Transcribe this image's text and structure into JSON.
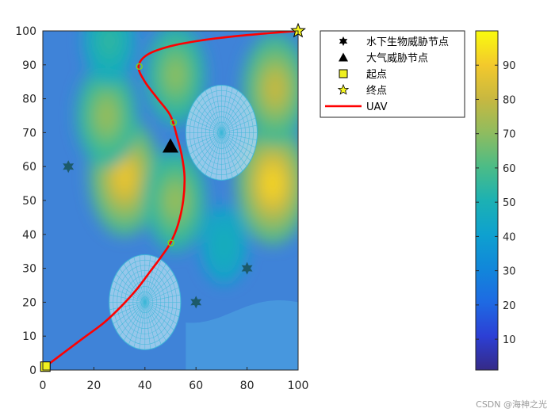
{
  "chart_data": {
    "type": "heatmap",
    "xlim": [
      0,
      100
    ],
    "ylim": [
      0,
      100
    ],
    "x_ticks": [
      0,
      20,
      40,
      60,
      80,
      100
    ],
    "y_ticks": [
      0,
      10,
      20,
      30,
      40,
      50,
      60,
      70,
      80,
      90,
      100
    ],
    "grid": false,
    "terrain_peaks": [
      {
        "x": 32,
        "y": 57,
        "value": 88
      },
      {
        "x": 90,
        "y": 55,
        "value": 92
      },
      {
        "x": 25,
        "y": 75,
        "value": 72
      },
      {
        "x": 91,
        "y": 83,
        "value": 80
      },
      {
        "x": 52,
        "y": 50,
        "value": 72
      },
      {
        "x": 52,
        "y": 87,
        "value": 70
      },
      {
        "x": 26,
        "y": 97,
        "value": 55
      },
      {
        "x": 71,
        "y": 37,
        "value": 48
      }
    ],
    "threat_zones": [
      {
        "cx": 40,
        "cy": 20,
        "r": 14
      },
      {
        "cx": 70,
        "cy": 70,
        "r": 14
      }
    ],
    "underwater_threat_nodes": [
      {
        "x": 10,
        "y": 60
      },
      {
        "x": 60,
        "y": 20
      },
      {
        "x": 80,
        "y": 30
      }
    ],
    "air_threat_nodes": [
      {
        "x": 50,
        "y": 66
      }
    ],
    "start_point": {
      "x": 1,
      "y": 1
    },
    "end_point": {
      "x": 100,
      "y": 100
    },
    "waypoints": [
      {
        "x": 37.8,
        "y": 89.5
      },
      {
        "x": 51.2,
        "y": 73.0
      },
      {
        "x": 50.2,
        "y": 37.5
      }
    ],
    "uav_path": [
      {
        "x": 1,
        "y": 1
      },
      {
        "x": 8,
        "y": 5
      },
      {
        "x": 16,
        "y": 9.5
      },
      {
        "x": 24,
        "y": 14
      },
      {
        "x": 31,
        "y": 19
      },
      {
        "x": 37,
        "y": 24
      },
      {
        "x": 42,
        "y": 29
      },
      {
        "x": 46,
        "y": 33
      },
      {
        "x": 50,
        "y": 37.5
      },
      {
        "x": 53,
        "y": 43
      },
      {
        "x": 55,
        "y": 50
      },
      {
        "x": 55.5,
        "y": 57
      },
      {
        "x": 54.5,
        "y": 63
      },
      {
        "x": 52.5,
        "y": 69
      },
      {
        "x": 50,
        "y": 75
      },
      {
        "x": 45,
        "y": 80
      },
      {
        "x": 40,
        "y": 85
      },
      {
        "x": 37.5,
        "y": 89.5
      },
      {
        "x": 41,
        "y": 93
      },
      {
        "x": 50,
        "y": 95.5
      },
      {
        "x": 62,
        "y": 97.2
      },
      {
        "x": 75,
        "y": 98.4
      },
      {
        "x": 88,
        "y": 99.3
      },
      {
        "x": 100,
        "y": 100
      }
    ],
    "colorbar": {
      "min": 1,
      "max": 100,
      "ticks": [
        10,
        20,
        30,
        40,
        50,
        60,
        70,
        80,
        90
      ]
    },
    "legend_placement": "top-right",
    "legend": [
      {
        "label": "水下生物威胁节点",
        "symbol": "hexagram"
      },
      {
        "label": "大气威胁节点",
        "symbol": "triangle"
      },
      {
        "label": "起点",
        "symbol": "square"
      },
      {
        "label": "终点",
        "symbol": "pentagram"
      },
      {
        "label": "UAV",
        "symbol": "line"
      }
    ],
    "colors": {
      "path": "#ff0000",
      "parula_low": "#352a87",
      "parula_high": "#f9fb0e",
      "threat_mesh": "#3fb8d8",
      "underwater_node": "#1c5a6a",
      "start_fill": "#f0f020",
      "end_fill": "#f8f820"
    }
  },
  "watermark": "CSDN @海神之光"
}
